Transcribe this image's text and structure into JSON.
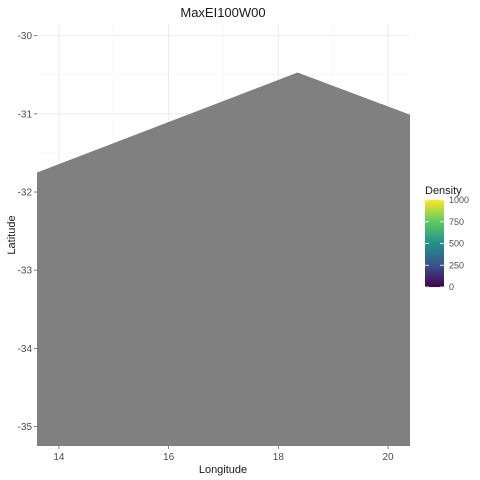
{
  "chart_data": {
    "type": "heatmap",
    "title": "MaxEI100W00",
    "xlabel": "Longitude",
    "ylabel": "Latitude",
    "xlim": [
      13.6,
      20.4
    ],
    "ylim": [
      -35.25,
      -29.85
    ],
    "x_ticks": [
      14,
      16,
      18,
      20
    ],
    "y_ticks": [
      -30,
      -31,
      -32,
      -33,
      -34,
      -35
    ],
    "x_tick_labels": [
      "14",
      "16",
      "18",
      "20"
    ],
    "y_tick_labels": [
      "-30",
      "-31",
      "-32",
      "-33",
      "-34",
      "-35"
    ],
    "grid": true,
    "region": {
      "fill": "#808080",
      "boundary": [
        [
          13.6,
          -31.75
        ],
        [
          18.35,
          -30.47
        ],
        [
          20.4,
          -31.01
        ],
        [
          20.4,
          -35.25
        ],
        [
          13.6,
          -35.25
        ]
      ]
    },
    "legend": {
      "title": "Density",
      "placement": "right",
      "range": [
        0,
        1000
      ],
      "breaks": [
        0,
        250,
        500,
        750,
        1000
      ],
      "labels": [
        "0",
        "250",
        "500",
        "750",
        "1000"
      ],
      "colors": [
        "#440154",
        "#3b528b",
        "#21918c",
        "#5ec962",
        "#fde725"
      ]
    }
  }
}
